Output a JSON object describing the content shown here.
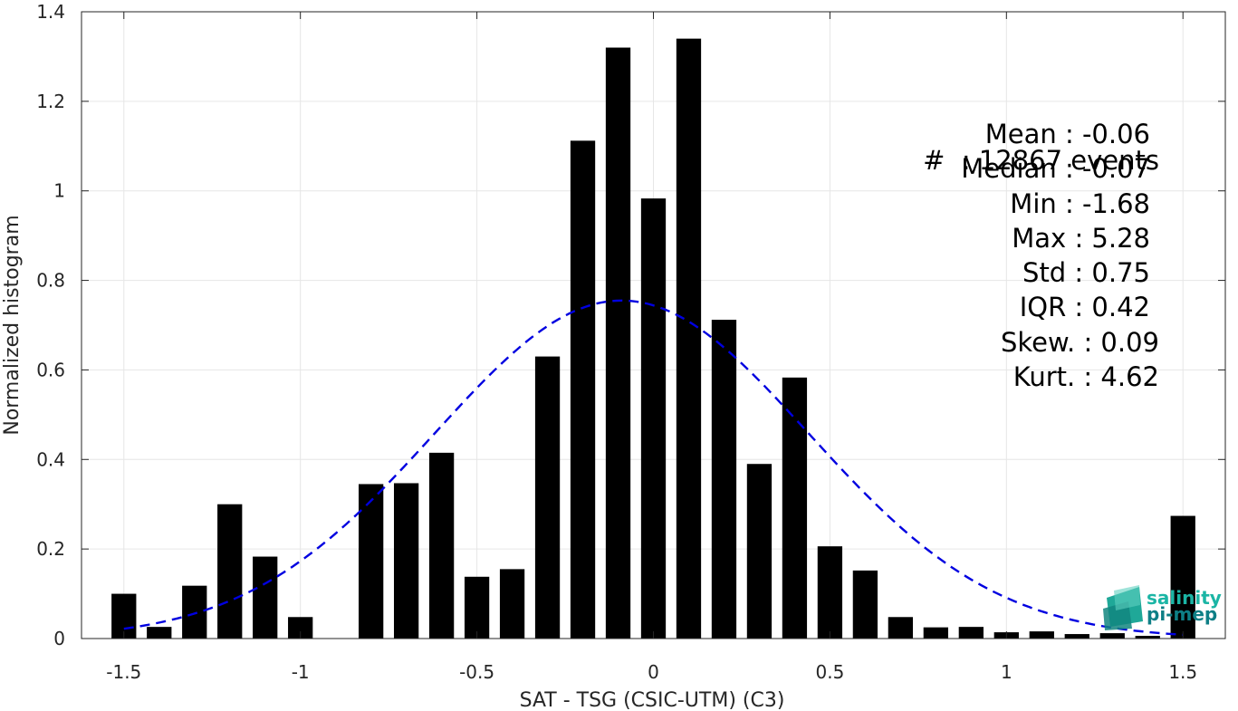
{
  "chart_data": {
    "type": "bar",
    "xlabel": "SAT - TSG (CSIC-UTM) (C3)",
    "ylabel": "Normalized histogram",
    "xlim": [
      -1.62,
      1.62
    ],
    "ylim": [
      0,
      1.4
    ],
    "grid": true,
    "xticks": [
      -1.5,
      -1,
      -0.5,
      0,
      0.5,
      1,
      1.5
    ],
    "xtick_labels": [
      "-1.5",
      "-1",
      "-0.5",
      "0",
      "0.5",
      "1",
      "1.5"
    ],
    "yticks": [
      0,
      0.2,
      0.4,
      0.6,
      0.8,
      1,
      1.2,
      1.4
    ],
    "ytick_labels": [
      "0",
      "0.2",
      "0.4",
      "0.6",
      "0.8",
      "1",
      "1.2",
      "1.4"
    ],
    "bar_width": 0.07,
    "bars": {
      "x": [
        -1.5,
        -1.4,
        -1.3,
        -1.2,
        -1.1,
        -1.0,
        -0.9,
        -0.8,
        -0.7,
        -0.6,
        -0.5,
        -0.4,
        -0.3,
        -0.2,
        -0.1,
        0.0,
        0.1,
        0.2,
        0.3,
        0.4,
        0.5,
        0.6,
        0.7,
        0.8,
        0.9,
        1.0,
        1.1,
        1.2,
        1.3,
        1.4,
        1.5
      ],
      "values": [
        0.1,
        0.026,
        0.118,
        0.3,
        0.183,
        0.048,
        0.0,
        0.345,
        0.347,
        0.415,
        0.138,
        0.155,
        0.63,
        1.112,
        1.32,
        0.983,
        1.34,
        0.712,
        0.39,
        0.583,
        0.206,
        0.152,
        0.048,
        0.025,
        0.026,
        0.014,
        0.016,
        0.01,
        0.012,
        0.006,
        0.274
      ],
      "color": "#000000"
    },
    "fit": {
      "type": "normal",
      "mean": -0.09,
      "std": 0.53,
      "peak": 0.755,
      "x_range": [
        -1.5,
        1.5
      ],
      "color": "#0000e0",
      "style": "dashed"
    }
  },
  "stats_block": {
    "events_line": "#  : 12867 events",
    "lines": [
      "Mean : -0.06",
      "Median : -0.07",
      "Min : -1.68",
      "Max : 5.28",
      "Std : 0.75",
      "IQR : 0.42",
      "Skew. : 0.09",
      "Kurt. : 4.62"
    ]
  },
  "logo": {
    "line1": "salinity",
    "line2": "pi-mep",
    "color1": "#1bb5a5",
    "color2": "#0e7f86"
  }
}
